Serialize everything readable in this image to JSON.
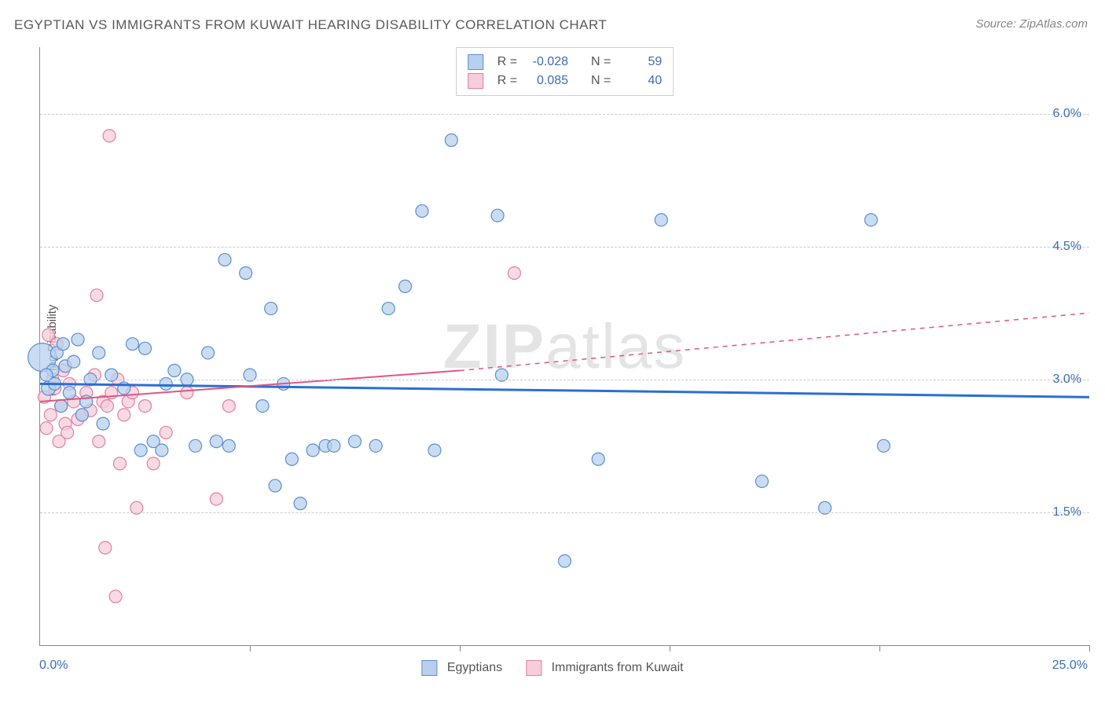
{
  "title": "EGYPTIAN VS IMMIGRANTS FROM KUWAIT HEARING DISABILITY CORRELATION CHART",
  "source": "Source: ZipAtlas.com",
  "watermark_bold": "ZIP",
  "watermark_rest": "atlas",
  "chart": {
    "type": "scatter",
    "background_color": "#ffffff",
    "grid_color": "#cccccc",
    "text_color": "#555555",
    "axis_value_color": "#3b6db5",
    "title_fontsize": 17,
    "label_fontsize": 15,
    "tick_fontsize": 16,
    "ylabel": "Hearing Disability",
    "xlim": [
      0.0,
      25.0
    ],
    "ylim": [
      0.0,
      6.75
    ],
    "yticks": [
      1.5,
      3.0,
      4.5,
      6.0
    ],
    "ytick_labels": [
      "1.5%",
      "3.0%",
      "4.5%",
      "6.0%"
    ],
    "xticks": [
      0,
      5,
      10,
      15,
      20,
      25
    ],
    "x_min_label": "0.0%",
    "x_max_label": "25.0%",
    "series": [
      {
        "name": "Egyptians",
        "marker_fill": "#b8d0ee",
        "marker_stroke": "#5a8fd0",
        "marker_opacity": 0.75,
        "marker_radius_range": [
          7,
          18
        ],
        "line_color": "#2a6fd6",
        "line_width": 3,
        "line_dash": "none",
        "trend": {
          "x1": 0,
          "y1": 2.95,
          "x2": 25,
          "y2": 2.8
        },
        "R": "-0.028",
        "N": "59",
        "points": [
          {
            "x": 0.05,
            "y": 3.25,
            "r": 18
          },
          {
            "x": 0.2,
            "y": 2.9,
            "r": 9
          },
          {
            "x": 0.3,
            "y": 3.1,
            "r": 8
          },
          {
            "x": 0.4,
            "y": 3.3,
            "r": 8
          },
          {
            "x": 0.5,
            "y": 2.7,
            "r": 8
          },
          {
            "x": 0.6,
            "y": 3.15,
            "r": 8
          },
          {
            "x": 0.7,
            "y": 2.85,
            "r": 8
          },
          {
            "x": 0.8,
            "y": 3.2,
            "r": 8
          },
          {
            "x": 0.9,
            "y": 3.45,
            "r": 8
          },
          {
            "x": 1.0,
            "y": 2.6,
            "r": 8
          },
          {
            "x": 1.2,
            "y": 3.0,
            "r": 8
          },
          {
            "x": 1.4,
            "y": 3.3,
            "r": 8
          },
          {
            "x": 1.5,
            "y": 2.5,
            "r": 8
          },
          {
            "x": 1.7,
            "y": 3.05,
            "r": 8
          },
          {
            "x": 2.0,
            "y": 2.9,
            "r": 8
          },
          {
            "x": 2.2,
            "y": 3.4,
            "r": 8
          },
          {
            "x": 2.4,
            "y": 2.2,
            "r": 8
          },
          {
            "x": 2.5,
            "y": 3.35,
            "r": 8
          },
          {
            "x": 2.7,
            "y": 2.3,
            "r": 8
          },
          {
            "x": 3.0,
            "y": 2.95,
            "r": 8
          },
          {
            "x": 3.2,
            "y": 3.1,
            "r": 8
          },
          {
            "x": 3.5,
            "y": 3.0,
            "r": 8
          },
          {
            "x": 3.7,
            "y": 2.25,
            "r": 8
          },
          {
            "x": 4.0,
            "y": 3.3,
            "r": 8
          },
          {
            "x": 4.2,
            "y": 2.3,
            "r": 8
          },
          {
            "x": 4.4,
            "y": 4.35,
            "r": 8
          },
          {
            "x": 4.5,
            "y": 2.25,
            "r": 8
          },
          {
            "x": 4.9,
            "y": 4.2,
            "r": 8
          },
          {
            "x": 5.0,
            "y": 3.05,
            "r": 8
          },
          {
            "x": 5.3,
            "y": 2.7,
            "r": 8
          },
          {
            "x": 5.5,
            "y": 3.8,
            "r": 8
          },
          {
            "x": 5.6,
            "y": 1.8,
            "r": 8
          },
          {
            "x": 5.8,
            "y": 2.95,
            "r": 8
          },
          {
            "x": 6.0,
            "y": 2.1,
            "r": 8
          },
          {
            "x": 6.2,
            "y": 1.6,
            "r": 8
          },
          {
            "x": 6.5,
            "y": 2.2,
            "r": 8
          },
          {
            "x": 6.8,
            "y": 2.25,
            "r": 8
          },
          {
            "x": 7.0,
            "y": 2.25,
            "r": 8
          },
          {
            "x": 7.5,
            "y": 2.3,
            "r": 8
          },
          {
            "x": 8.0,
            "y": 2.25,
            "r": 8
          },
          {
            "x": 8.3,
            "y": 3.8,
            "r": 8
          },
          {
            "x": 8.7,
            "y": 4.05,
            "r": 8
          },
          {
            "x": 9.1,
            "y": 4.9,
            "r": 8
          },
          {
            "x": 9.4,
            "y": 2.2,
            "r": 8
          },
          {
            "x": 9.8,
            "y": 5.7,
            "r": 8
          },
          {
            "x": 10.9,
            "y": 4.85,
            "r": 8
          },
          {
            "x": 11.0,
            "y": 3.05,
            "r": 8
          },
          {
            "x": 12.5,
            "y": 0.95,
            "r": 8
          },
          {
            "x": 13.3,
            "y": 2.1,
            "r": 8
          },
          {
            "x": 14.8,
            "y": 4.8,
            "r": 8
          },
          {
            "x": 17.2,
            "y": 1.85,
            "r": 8
          },
          {
            "x": 18.7,
            "y": 1.55,
            "r": 8
          },
          {
            "x": 19.8,
            "y": 4.8,
            "r": 8
          },
          {
            "x": 20.1,
            "y": 2.25,
            "r": 8
          },
          {
            "x": 0.15,
            "y": 3.05,
            "r": 8
          },
          {
            "x": 0.35,
            "y": 2.95,
            "r": 8
          },
          {
            "x": 0.55,
            "y": 3.4,
            "r": 8
          },
          {
            "x": 1.1,
            "y": 2.75,
            "r": 8
          },
          {
            "x": 2.9,
            "y": 2.2,
            "r": 8
          }
        ]
      },
      {
        "name": "Immigrants from Kuwait",
        "marker_fill": "#f6cdd9",
        "marker_stroke": "#e37fa2",
        "marker_opacity": 0.75,
        "marker_radius_range": [
          7,
          11
        ],
        "line_color": "#e15583",
        "line_width": 2,
        "line_dash": "solid-then-dashed",
        "trend_solid": {
          "x1": 0,
          "y1": 2.75,
          "x2": 10,
          "y2": 3.1
        },
        "trend_dashed": {
          "x1": 10,
          "y1": 3.1,
          "x2": 25,
          "y2": 3.75
        },
        "R": "0.085",
        "N": "40",
        "points": [
          {
            "x": 0.1,
            "y": 2.8,
            "r": 8
          },
          {
            "x": 0.2,
            "y": 3.5,
            "r": 8
          },
          {
            "x": 0.25,
            "y": 2.6,
            "r": 8
          },
          {
            "x": 0.3,
            "y": 3.0,
            "r": 8
          },
          {
            "x": 0.35,
            "y": 2.9,
            "r": 8
          },
          {
            "x": 0.4,
            "y": 3.4,
            "r": 8
          },
          {
            "x": 0.45,
            "y": 2.3,
            "r": 8
          },
          {
            "x": 0.5,
            "y": 2.7,
            "r": 8
          },
          {
            "x": 0.55,
            "y": 3.1,
            "r": 8
          },
          {
            "x": 0.6,
            "y": 2.5,
            "r": 8
          },
          {
            "x": 0.7,
            "y": 2.95,
            "r": 8
          },
          {
            "x": 0.8,
            "y": 2.75,
            "r": 8
          },
          {
            "x": 0.9,
            "y": 2.55,
            "r": 8
          },
          {
            "x": 1.0,
            "y": 2.6,
            "r": 8
          },
          {
            "x": 1.1,
            "y": 2.85,
            "r": 8
          },
          {
            "x": 1.2,
            "y": 2.65,
            "r": 8
          },
          {
            "x": 1.3,
            "y": 3.05,
            "r": 8
          },
          {
            "x": 1.35,
            "y": 3.95,
            "r": 8
          },
          {
            "x": 1.4,
            "y": 2.3,
            "r": 8
          },
          {
            "x": 1.5,
            "y": 2.75,
            "r": 8
          },
          {
            "x": 1.55,
            "y": 1.1,
            "r": 8
          },
          {
            "x": 1.6,
            "y": 2.7,
            "r": 8
          },
          {
            "x": 1.65,
            "y": 5.75,
            "r": 8
          },
          {
            "x": 1.7,
            "y": 2.85,
            "r": 8
          },
          {
            "x": 1.8,
            "y": 0.55,
            "r": 8
          },
          {
            "x": 1.85,
            "y": 3.0,
            "r": 8
          },
          {
            "x": 1.9,
            "y": 2.05,
            "r": 8
          },
          {
            "x": 2.0,
            "y": 2.6,
            "r": 8
          },
          {
            "x": 2.1,
            "y": 2.75,
            "r": 8
          },
          {
            "x": 2.2,
            "y": 2.85,
            "r": 8
          },
          {
            "x": 2.3,
            "y": 1.55,
            "r": 8
          },
          {
            "x": 2.5,
            "y": 2.7,
            "r": 8
          },
          {
            "x": 2.7,
            "y": 2.05,
            "r": 8
          },
          {
            "x": 3.0,
            "y": 2.4,
            "r": 8
          },
          {
            "x": 3.5,
            "y": 2.85,
            "r": 8
          },
          {
            "x": 4.2,
            "y": 1.65,
            "r": 8
          },
          {
            "x": 4.5,
            "y": 2.7,
            "r": 8
          },
          {
            "x": 11.3,
            "y": 4.2,
            "r": 8
          },
          {
            "x": 0.15,
            "y": 2.45,
            "r": 8
          },
          {
            "x": 0.65,
            "y": 2.4,
            "r": 8
          }
        ]
      }
    ],
    "top_legend": {
      "R_label": "R =",
      "N_label": "N ="
    },
    "bottom_legend": {
      "items": [
        "Egyptians",
        "Immigrants from Kuwait"
      ]
    }
  }
}
